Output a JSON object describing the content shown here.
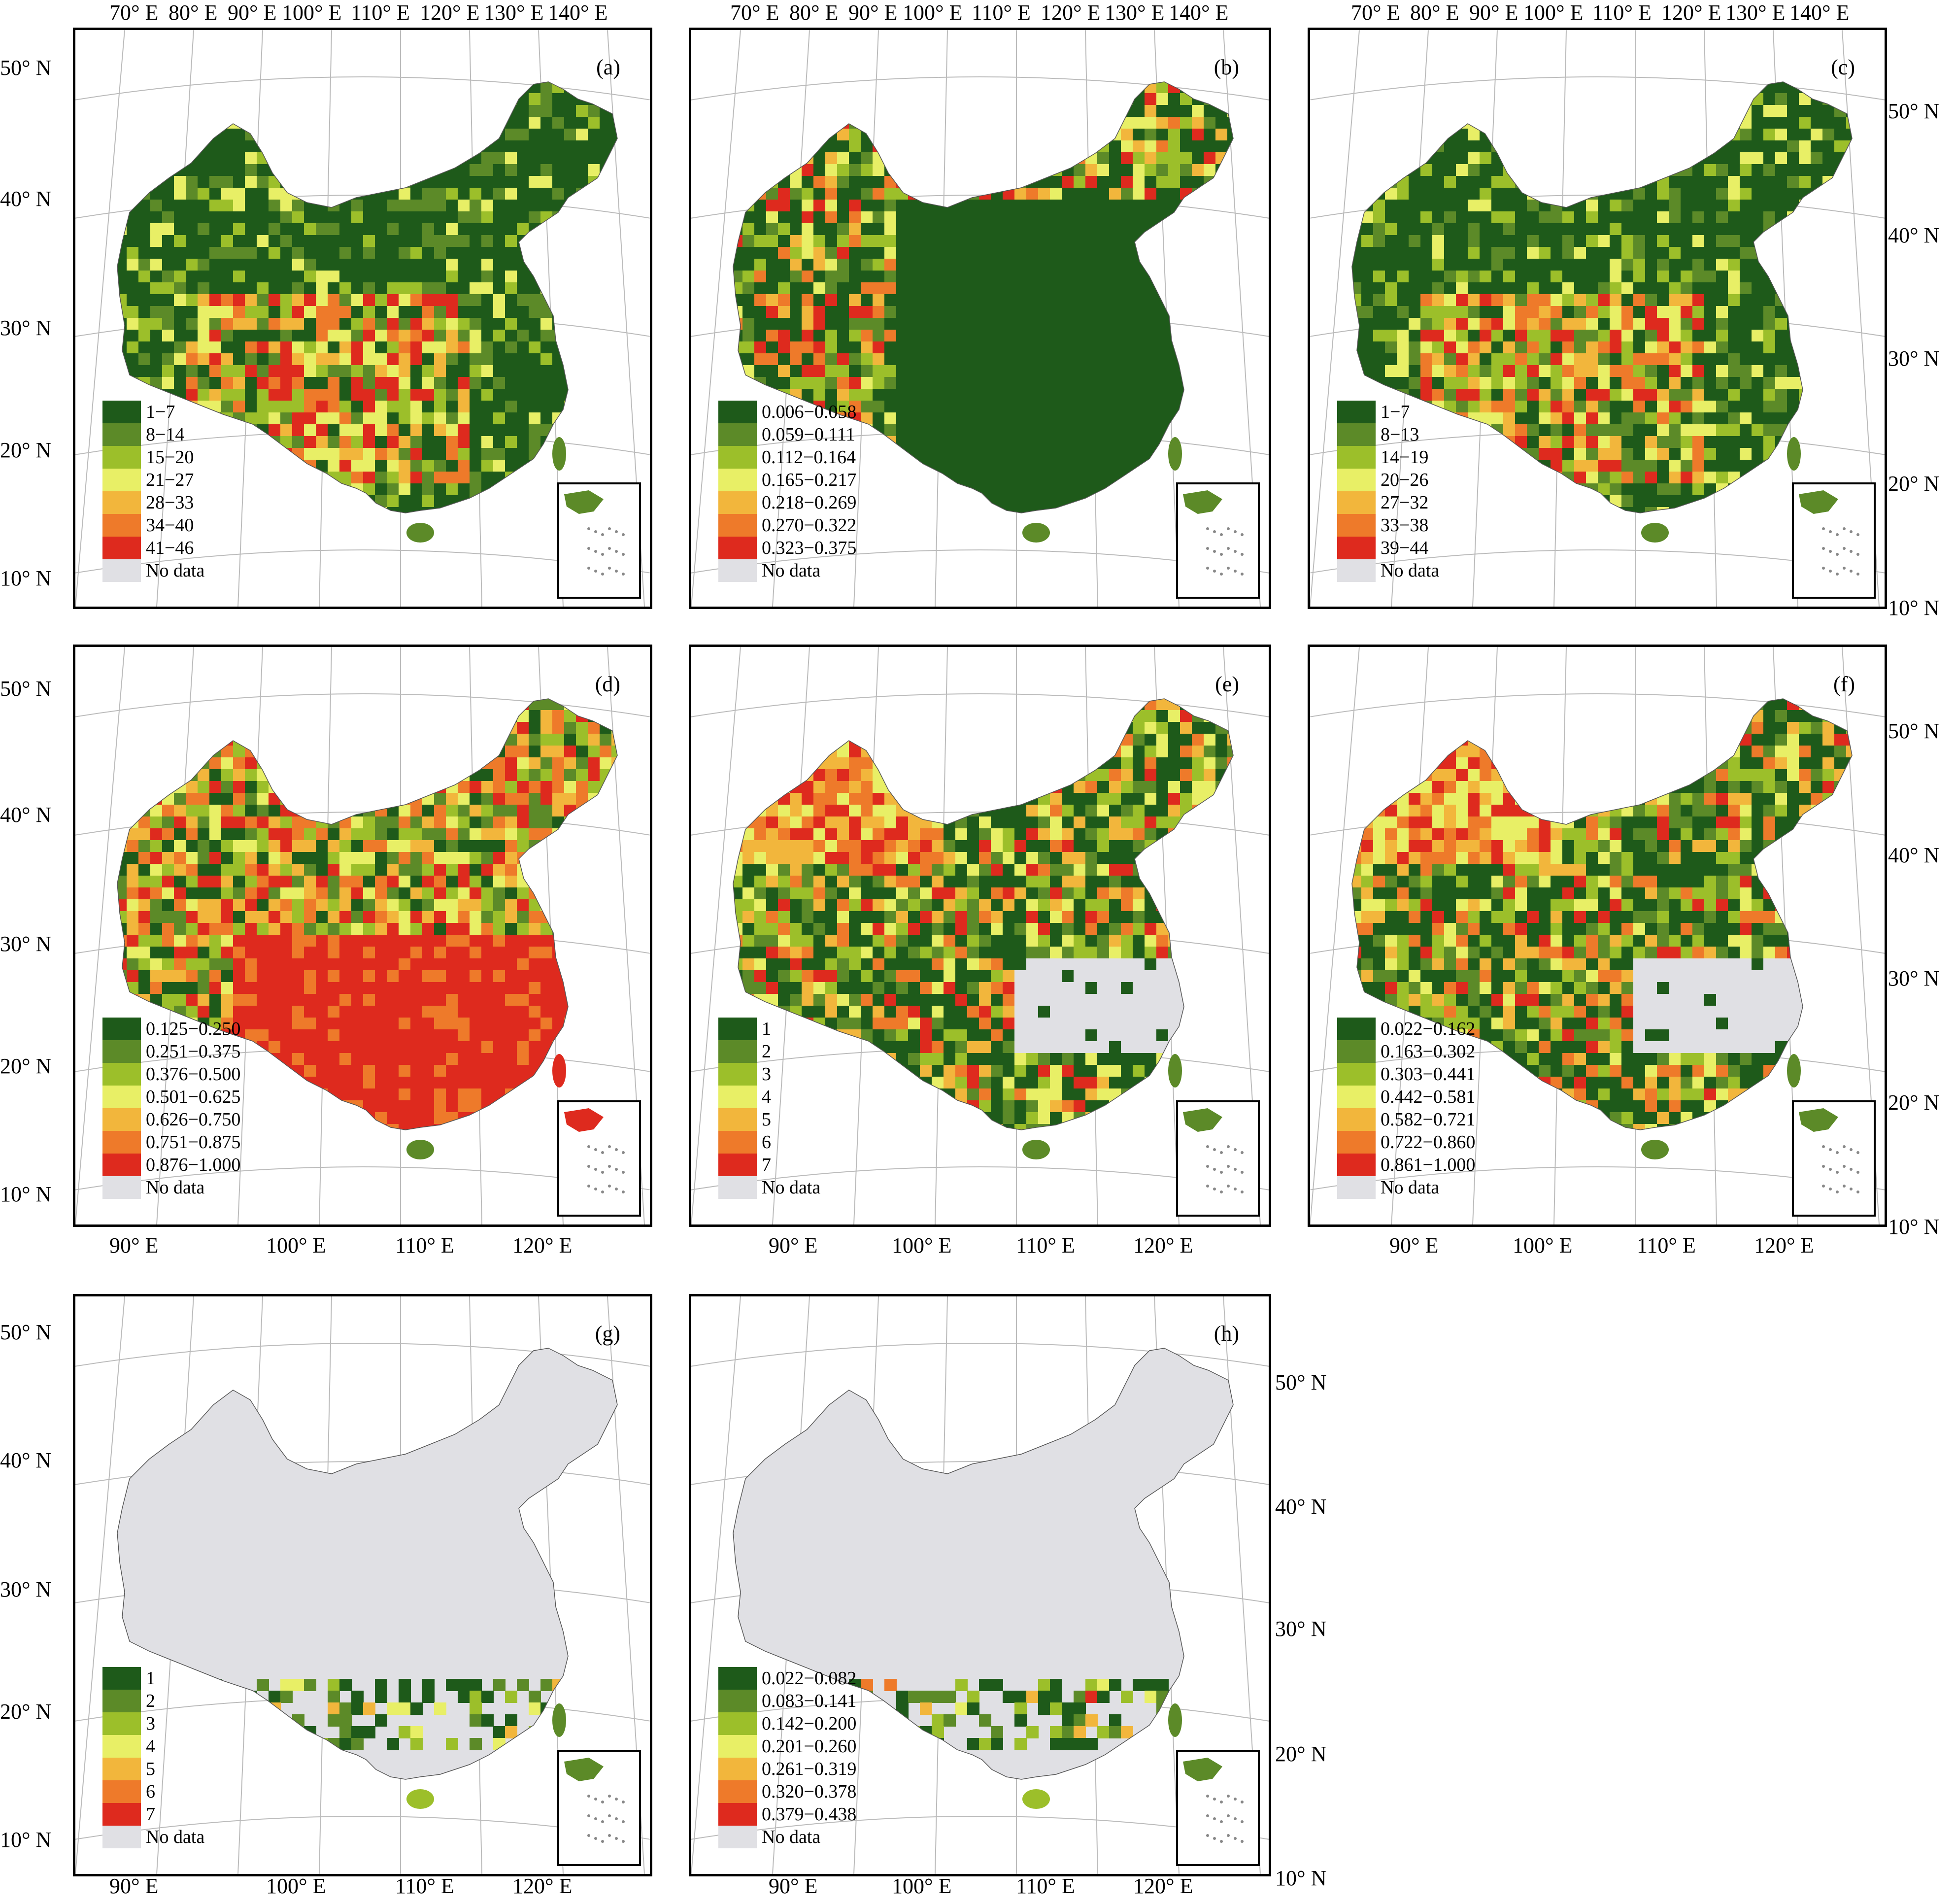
{
  "colors": {
    "c1": "#1e5a1a",
    "c2": "#5c8a28",
    "c3": "#9cbf2a",
    "c4": "#e8ef66",
    "c5": "#f2b63c",
    "c6": "#ee7a2a",
    "c7": "#de2a1e",
    "nodata": "#e0e0e4",
    "grid": "#bbbbbb"
  },
  "top_lon_labels": [
    "70° E",
    "80° E",
    "90° E",
    "100° E",
    "110° E",
    "120° E",
    "130° E",
    "140° E"
  ],
  "bottom_lon_labels": [
    "90° E",
    "100° E",
    "110° E",
    "120° E"
  ],
  "lat_labels": [
    "50° N",
    "40° N",
    "30° N",
    "20° N",
    "10° N"
  ],
  "no_data_label": "No data",
  "panels": [
    {
      "label": "(a)",
      "legend": [
        "1−7",
        "8−14",
        "15−20",
        "21−27",
        "28−33",
        "34−40",
        "41−46"
      ]
    },
    {
      "label": "(b)",
      "legend": [
        "0.006−0.058",
        "0.059−0.111",
        "0.112−0.164",
        "0.165−0.217",
        "0.218−0.269",
        "0.270−0.322",
        "0.323−0.375"
      ]
    },
    {
      "label": "(c)",
      "legend": [
        "1−7",
        "8−13",
        "14−19",
        "20−26",
        "27−32",
        "33−38",
        "39−44"
      ]
    },
    {
      "label": "(d)",
      "legend": [
        "0.125−0.250",
        "0.251−0.375",
        "0.376−0.500",
        "0.501−0.625",
        "0.626−0.750",
        "0.751−0.875",
        "0.876−1.000"
      ]
    },
    {
      "label": "(e)",
      "legend": [
        "1",
        "2",
        "3",
        "4",
        "5",
        "6",
        "7"
      ]
    },
    {
      "label": "(f)",
      "legend": [
        "0.022−0.162",
        "0.163−0.302",
        "0.303−0.441",
        "0.442−0.581",
        "0.582−0.721",
        "0.722−0.860",
        "0.861−1.000"
      ]
    },
    {
      "label": "(g)",
      "legend": [
        "1",
        "2",
        "3",
        "4",
        "5",
        "6",
        "7"
      ]
    },
    {
      "label": "(h)",
      "legend": [
        "0.022−0.082",
        "0.083−0.141",
        "0.142−0.200",
        "0.201−0.260",
        "0.261−0.319",
        "0.320−0.378",
        "0.379−0.438"
      ]
    }
  ]
}
